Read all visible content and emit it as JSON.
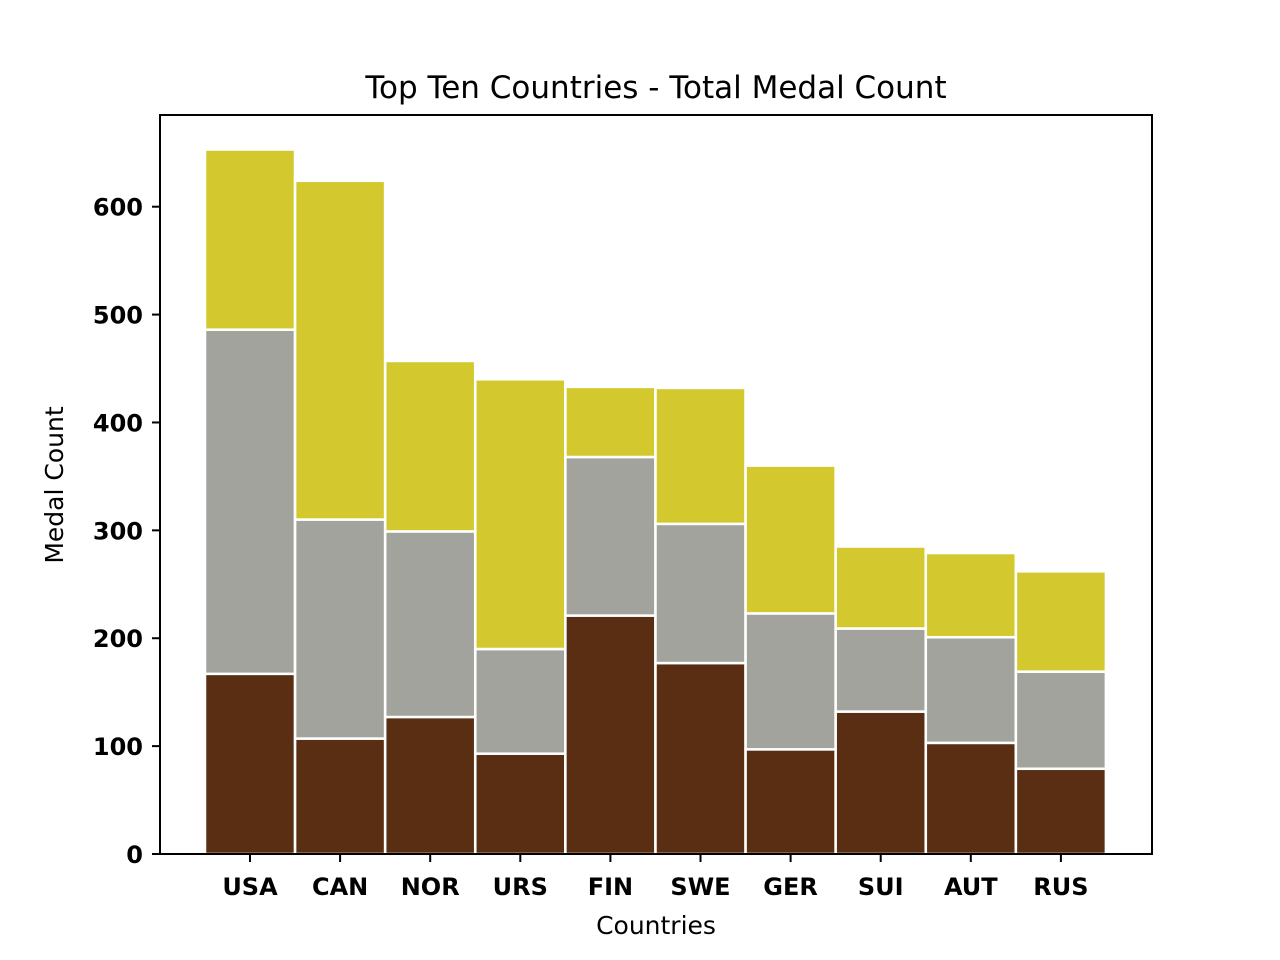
{
  "chart_data": {
    "type": "bar",
    "stacked": true,
    "title": "Top Ten Countries - Total Medal Count",
    "xlabel": "Countries",
    "ylabel": "Medal Count",
    "categories": [
      "USA",
      "CAN",
      "NOR",
      "URS",
      "FIN",
      "SWE",
      "GER",
      "SUI",
      "AUT",
      "RUS"
    ],
    "ylim": [
      0,
      685
    ],
    "yticks": [
      0,
      100,
      200,
      300,
      400,
      500,
      600
    ],
    "grid": false,
    "legend": "none",
    "series": [
      {
        "color": "#5a2e12",
        "values": [
          167,
          107,
          127,
          93,
          221,
          177,
          97,
          132,
          103,
          79
        ]
      },
      {
        "color": "#a3a39d",
        "values": [
          319,
          203,
          172,
          97,
          147,
          129,
          126,
          77,
          98,
          90
        ]
      },
      {
        "color": "#d3c92f",
        "values": [
          167,
          314,
          158,
          250,
          65,
          126,
          137,
          76,
          78,
          93
        ]
      }
    ]
  }
}
